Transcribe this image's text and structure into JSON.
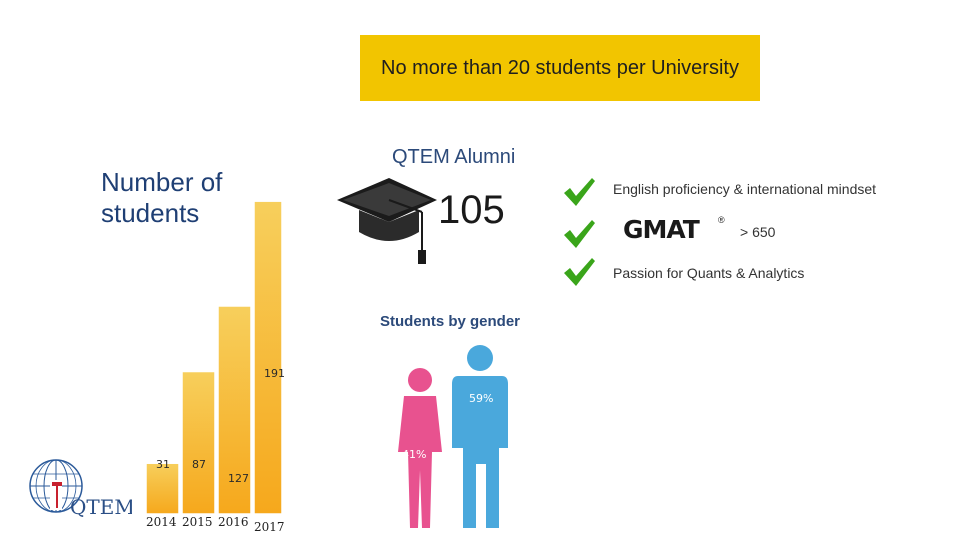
{
  "banner": {
    "text": "No more than 20 students per University"
  },
  "chart_data": {
    "type": "bar",
    "title": "Number of students",
    "categories": [
      "2014",
      "2015",
      "2016",
      "2017"
    ],
    "values": [
      31,
      87,
      127,
      191
    ],
    "color": "#f7b52a"
  },
  "alumni": {
    "title": "QTEM Alumni",
    "count": "105",
    "icon": "graduation-cap-icon"
  },
  "requirements": {
    "check_color": "#3aa51a",
    "items": [
      {
        "text": "English proficiency & international mindset"
      },
      {
        "logo": "GMAT",
        "logo_mark": "®",
        "text": "> 650"
      },
      {
        "text": "Passion for Quants & Analytics"
      }
    ]
  },
  "gender": {
    "title": "Students by gender",
    "male_pct": "59%",
    "female_pct": "41%",
    "male_color": "#4aa8dc",
    "female_color": "#e8528f"
  },
  "logo": {
    "text": "QTEM"
  }
}
